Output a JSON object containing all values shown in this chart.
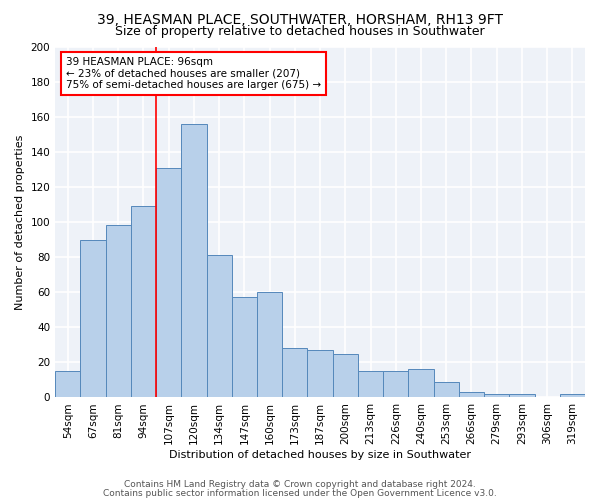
{
  "title": "39, HEASMAN PLACE, SOUTHWATER, HORSHAM, RH13 9FT",
  "subtitle": "Size of property relative to detached houses in Southwater",
  "xlabel": "Distribution of detached houses by size in Southwater",
  "ylabel": "Number of detached properties",
  "categories": [
    "54sqm",
    "67sqm",
    "81sqm",
    "94sqm",
    "107sqm",
    "120sqm",
    "134sqm",
    "147sqm",
    "160sqm",
    "173sqm",
    "187sqm",
    "200sqm",
    "213sqm",
    "226sqm",
    "240sqm",
    "253sqm",
    "266sqm",
    "279sqm",
    "293sqm",
    "306sqm",
    "319sqm"
  ],
  "values": [
    15,
    90,
    98,
    109,
    131,
    156,
    81,
    57,
    60,
    28,
    27,
    25,
    15,
    15,
    16,
    9,
    3,
    2,
    2,
    0,
    2
  ],
  "bar_color": "#b8d0ea",
  "bar_edge_color": "#5588bb",
  "annotation_text": "39 HEASMAN PLACE: 96sqm\n← 23% of detached houses are smaller (207)\n75% of semi-detached houses are larger (675) →",
  "annotation_box_color": "white",
  "annotation_box_edge_color": "red",
  "ylim": [
    0,
    200
  ],
  "yticks": [
    0,
    20,
    40,
    60,
    80,
    100,
    120,
    140,
    160,
    180,
    200
  ],
  "footer1": "Contains HM Land Registry data © Crown copyright and database right 2024.",
  "footer2": "Contains public sector information licensed under the Open Government Licence v3.0.",
  "bg_color": "#eef2f8",
  "grid_color": "white",
  "title_fontsize": 10,
  "subtitle_fontsize": 9,
  "axis_label_fontsize": 8,
  "tick_fontsize": 7.5,
  "annotation_fontsize": 7.5,
  "footer_fontsize": 6.5,
  "red_line_index": 3.5
}
